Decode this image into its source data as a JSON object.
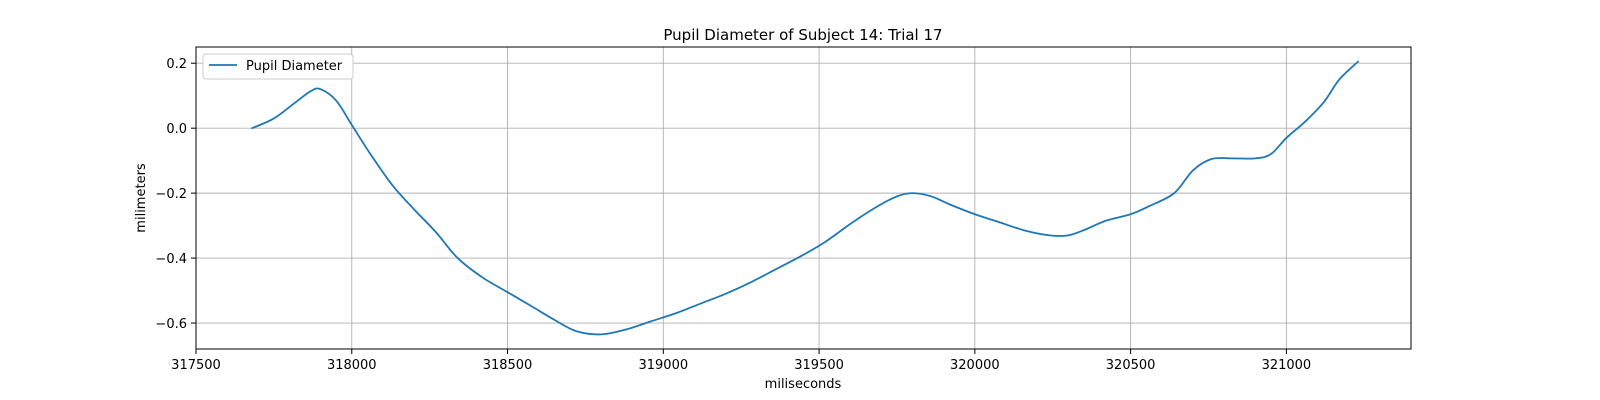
{
  "chart_data": {
    "type": "line",
    "title": "Pupil Diameter of Subject 14: Trial 17",
    "xlabel": "miliseconds",
    "ylabel": "milimeters",
    "xlim": [
      317500,
      321400
    ],
    "ylim": [
      -0.68,
      0.25
    ],
    "x_ticks": [
      317500,
      318000,
      318500,
      319000,
      319500,
      320000,
      320500,
      321000
    ],
    "y_ticks": [
      -0.6,
      -0.4,
      -0.2,
      0.0,
      0.2
    ],
    "x_tick_labels": [
      "317500",
      "318000",
      "318500",
      "319000",
      "319500",
      "320000",
      "320500",
      "321000"
    ],
    "y_tick_labels": [
      "−0.6",
      "−0.4",
      "−0.2",
      "0.0",
      "0.2"
    ],
    "grid": true,
    "legend": {
      "placement": "upper-left",
      "entries": [
        "Pupil Diameter"
      ]
    },
    "series": [
      {
        "name": "Pupil Diameter",
        "color": "#1f77b4",
        "x": [
          317680,
          317750,
          317820,
          317870,
          317900,
          317950,
          318000,
          318060,
          318130,
          318200,
          318270,
          318340,
          318420,
          318500,
          318580,
          318650,
          318720,
          318800,
          318880,
          318960,
          319040,
          319120,
          319200,
          319280,
          319360,
          319440,
          319520,
          319600,
          319680,
          319750,
          319800,
          319860,
          319920,
          320000,
          320080,
          320160,
          320240,
          320300,
          320360,
          320420,
          320500,
          320560,
          320640,
          320700,
          320760,
          320830,
          320900,
          320950,
          321000,
          321060,
          321120,
          321170,
          321230
        ],
        "y": [
          0.0,
          0.03,
          0.08,
          0.115,
          0.12,
          0.085,
          0.01,
          -0.08,
          -0.175,
          -0.25,
          -0.32,
          -0.4,
          -0.46,
          -0.505,
          -0.55,
          -0.59,
          -0.625,
          -0.635,
          -0.62,
          -0.595,
          -0.57,
          -0.54,
          -0.51,
          -0.475,
          -0.435,
          -0.395,
          -0.35,
          -0.295,
          -0.245,
          -0.21,
          -0.2,
          -0.21,
          -0.235,
          -0.265,
          -0.29,
          -0.315,
          -0.33,
          -0.33,
          -0.31,
          -0.285,
          -0.265,
          -0.24,
          -0.2,
          -0.13,
          -0.095,
          -0.093,
          -0.093,
          -0.08,
          -0.03,
          0.02,
          0.08,
          0.15,
          0.205
        ]
      }
    ]
  }
}
